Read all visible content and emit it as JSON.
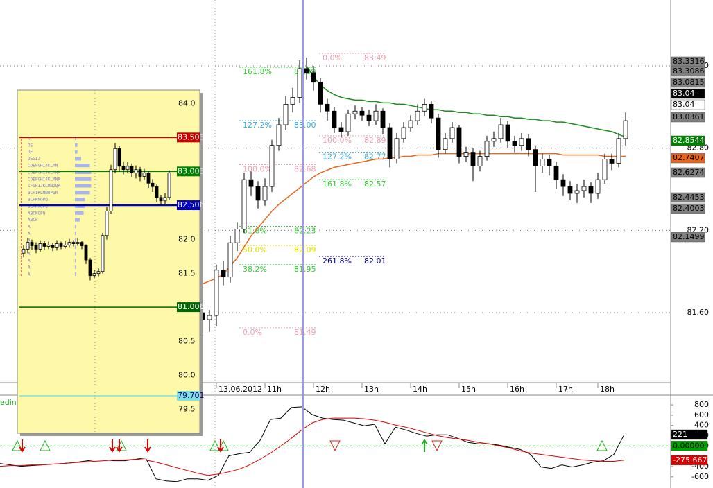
{
  "chart_data": [
    {
      "type": "candlestick",
      "categories": [
        null,
        null,
        "13.06.2012",
        null,
        null,
        null,
        null,
        null,
        null,
        "11h",
        null,
        null,
        null,
        null,
        null,
        null,
        "12h",
        null,
        null,
        null,
        null,
        null,
        null,
        "13h",
        null,
        null,
        null,
        null,
        null,
        null,
        "14h",
        null,
        null,
        null,
        null,
        null,
        null,
        "15h",
        null,
        null,
        null,
        null,
        null,
        null,
        "16h",
        null,
        null,
        null,
        null,
        null,
        null,
        "17h",
        null,
        null,
        null,
        null,
        null,
        "18h",
        null,
        null,
        null,
        null
      ],
      "open": [
        81.6,
        81.55,
        81.58,
        81.91,
        81.86,
        82.11,
        82.21,
        82.57,
        82.52,
        82.42,
        82.52,
        82.82,
        82.97,
        83.12,
        83.17,
        83.38,
        83.35,
        83.28,
        83.12,
        83.07,
        82.95,
        82.92,
        83.05,
        83.07,
        83.04,
        83.0,
        83.07,
        82.95,
        82.72,
        82.87,
        82.95,
        83.0,
        83.07,
        83.12,
        83.02,
        82.79,
        82.87,
        82.95,
        82.74,
        82.77,
        82.67,
        82.74,
        82.85,
        82.87,
        82.97,
        82.85,
        82.82,
        82.87,
        82.79,
        82.67,
        82.72,
        82.67,
        82.57,
        82.52,
        82.47,
        82.49,
        82.52,
        82.47,
        82.57,
        82.72,
        82.69,
        82.87
      ],
      "high": [
        81.63,
        81.62,
        81.95,
        81.98,
        82.16,
        82.26,
        82.62,
        82.63,
        82.56,
        82.58,
        82.86,
        83.02,
        83.18,
        83.24,
        83.44,
        83.46,
        83.4,
        83.31,
        83.16,
        83.1,
        82.99,
        83.08,
        83.11,
        83.1,
        83.08,
        83.12,
        83.09,
        82.98,
        82.91,
        82.99,
        83.04,
        83.12,
        83.16,
        83.14,
        83.05,
        82.91,
        82.99,
        82.97,
        82.81,
        82.8,
        82.78,
        82.89,
        82.92,
        83.02,
        83.0,
        82.89,
        82.91,
        82.9,
        82.82,
        82.76,
        82.75,
        82.7,
        82.61,
        82.56,
        82.54,
        82.57,
        82.55,
        82.62,
        82.76,
        82.76,
        82.91,
        83.06
      ],
      "low": [
        81.45,
        81.46,
        81.5,
        81.8,
        81.82,
        82.05,
        82.18,
        82.45,
        82.36,
        82.38,
        82.48,
        82.78,
        82.93,
        83.06,
        83.13,
        83.3,
        83.22,
        83.06,
        83.0,
        82.91,
        82.88,
        82.89,
        83.01,
        83.0,
        82.96,
        82.97,
        82.9,
        82.66,
        82.69,
        82.84,
        82.92,
        82.97,
        83.03,
        82.98,
        82.73,
        82.76,
        82.84,
        82.69,
        82.7,
        82.56,
        82.63,
        82.71,
        82.81,
        82.84,
        82.8,
        82.77,
        82.78,
        82.74,
        82.48,
        82.62,
        82.6,
        82.5,
        82.45,
        82.42,
        82.4,
        82.44,
        82.4,
        82.43,
        82.54,
        82.64,
        82.66,
        82.82
      ],
      "close": [
        81.55,
        81.58,
        81.91,
        81.86,
        82.11,
        82.21,
        82.57,
        82.52,
        82.42,
        82.52,
        82.82,
        82.97,
        83.12,
        83.17,
        83.38,
        83.35,
        83.28,
        83.12,
        83.07,
        82.95,
        82.92,
        83.05,
        83.07,
        83.04,
        83.0,
        83.07,
        82.95,
        82.72,
        82.87,
        82.95,
        83.0,
        83.07,
        83.12,
        83.02,
        82.79,
        82.87,
        82.95,
        82.74,
        82.77,
        82.67,
        82.74,
        82.85,
        82.87,
        82.97,
        82.85,
        82.82,
        82.87,
        82.79,
        82.67,
        82.72,
        82.67,
        82.57,
        82.52,
        82.47,
        82.49,
        82.52,
        82.47,
        82.57,
        82.72,
        82.69,
        82.87,
        83.0
      ],
      "series": [
        {
          "color": "#1a8c1a",
          "values": [
            null,
            null,
            null,
            null,
            null,
            null,
            null,
            null,
            null,
            null,
            null,
            null,
            null,
            null,
            null,
            83.4,
            83.32,
            83.26,
            83.22,
            83.19,
            83.17,
            83.16,
            83.15,
            83.15,
            83.14,
            83.14,
            83.13,
            83.13,
            83.12,
            83.12,
            83.11,
            83.1,
            83.09,
            83.08,
            83.08,
            83.07,
            83.07,
            83.06,
            83.06,
            83.05,
            83.05,
            83.04,
            83.04,
            83.03,
            83.03,
            83.02,
            83.02,
            83.01,
            83.01,
            83.0,
            83.0,
            82.99,
            82.99,
            82.98,
            82.97,
            82.96,
            82.95,
            82.94,
            82.93,
            82.92,
            82.9,
            82.88
          ]
        },
        {
          "color": "#e8661c",
          "values": [
            81.81,
            81.83,
            81.85,
            81.88,
            81.94,
            82.0,
            82.08,
            82.16,
            82.22,
            82.28,
            82.34,
            82.39,
            82.43,
            82.47,
            82.51,
            82.55,
            82.59,
            82.62,
            82.64,
            82.66,
            82.67,
            82.68,
            82.69,
            82.7,
            82.71,
            82.72,
            82.72,
            82.73,
            82.73,
            82.74,
            82.74,
            82.75,
            82.75,
            82.75,
            82.76,
            82.76,
            82.76,
            82.76,
            82.76,
            82.76,
            82.76,
            82.76,
            82.76,
            82.76,
            82.76,
            82.76,
            82.76,
            82.76,
            82.76,
            82.76,
            82.76,
            82.76,
            82.75,
            82.75,
            82.75,
            82.75,
            82.75,
            82.75,
            82.74,
            82.74,
            82.74,
            82.74
          ]
        }
      ],
      "ylim": [
        81.09,
        83.88
      ],
      "yticks": [
        {
          "value": 83.4,
          "label": "83.40"
        },
        {
          "value": 82.8,
          "label": "82.80"
        },
        {
          "value": 82.2,
          "label": "82.20"
        },
        {
          "value": 81.6,
          "label": "81.60"
        }
      ],
      "grid": true,
      "fib_left": [
        {
          "label": "161.8%",
          "value": 83.39,
          "color": "#33cc33"
        },
        {
          "label": "127.2%",
          "value": 83.0,
          "price_label": "83.00",
          "color": "#33aadd"
        },
        {
          "label": "100.0%",
          "value": 82.68,
          "color": "#f0a0b0"
        },
        {
          "label": "61.8%",
          "value": 82.23,
          "color": "#33cc33"
        },
        {
          "label": "50.0%",
          "value": 82.09,
          "color": "#e0e000"
        },
        {
          "label": "38.2%",
          "value": 81.95,
          "color": "#33cc33"
        },
        {
          "label": "0.0%",
          "value": 81.49,
          "color": "#f0a0b0"
        }
      ],
      "fib_right": [
        {
          "label": "0.0%",
          "value": 83.49,
          "color": "#f0a0b0"
        },
        {
          "label": "100.0%",
          "value": 82.89,
          "color": "#f0a0b0"
        },
        {
          "label": "127.2%",
          "value": 82.77,
          "color": "#33aadd"
        },
        {
          "label": "161.8%",
          "value": 82.57,
          "color": "#33cc33"
        },
        {
          "label": "261.8%",
          "value": 82.01,
          "color": "#000080"
        }
      ],
      "price_labels": [
        {
          "value": 83.3316,
          "color": "#808080",
          "text_color": "#000000"
        },
        {
          "value": 83.3086,
          "color": "#808080",
          "text_color": "#000000"
        },
        {
          "value": 83.0815,
          "color": "#808080",
          "text_color": "#000000"
        },
        {
          "value": 83.04,
          "color": "#000000",
          "text_color": "#ffffff"
        },
        {
          "value": 83.04,
          "color": "#ffffff",
          "text_color": "#000000"
        },
        {
          "value": 83.0361,
          "color": "#808080",
          "text_color": "#000000"
        },
        {
          "value": 82.8544,
          "color": "#008000",
          "text_color": "#ffffff"
        },
        {
          "value": 82.7407,
          "color": "#e8661c",
          "text_color": "#000000"
        },
        {
          "value": 82.6274,
          "color": "#808080",
          "text_color": "#000000"
        },
        {
          "value": 82.4453,
          "color": "#808080",
          "text_color": "#000000"
        },
        {
          "value": 82.4003,
          "color": "#808080",
          "text_color": "#000000"
        },
        {
          "value": 82.1499,
          "color": "#808080",
          "text_color": "#000000"
        }
      ]
    },
    {
      "type": "line",
      "title": "edina",
      "series": [
        {
          "color": "#000000",
          "values": [
            -340,
            -367,
            -394,
            -381,
            -367,
            -354,
            -340,
            -326,
            -299,
            -272,
            -272,
            -286,
            -286,
            -258,
            -231,
            -639,
            -680,
            -694,
            -639,
            -639,
            -666,
            -571,
            -190,
            -150,
            -122,
            109,
            517,
            544,
            748,
            762,
            612,
            544,
            517,
            503,
            449,
            394,
            422,
            41,
            367,
            313,
            245,
            190,
            218,
            218,
            150,
            68,
            41,
            41,
            14,
            -27,
            -68,
            -163,
            -408,
            -435,
            -367,
            -408,
            -367,
            -313,
            -286,
            -163,
            221
          ]
        },
        {
          "color": "#dd0000",
          "values": [
            -394,
            -381,
            -381,
            -367,
            -367,
            -354,
            -340,
            -326,
            -313,
            -299,
            -286,
            -272,
            -272,
            -258,
            -272,
            -313,
            -367,
            -422,
            -476,
            -530,
            -571,
            -544,
            -503,
            -449,
            -367,
            -258,
            -136,
            0,
            150,
            313,
            449,
            517,
            544,
            544,
            544,
            530,
            503,
            462,
            408,
            367,
            313,
            258,
            204,
            163,
            136,
            109,
            68,
            41,
            0,
            -41,
            -95,
            -136,
            -163,
            -190,
            -218,
            -245,
            -272,
            -286,
            -299,
            -299,
            -275.667
          ]
        }
      ],
      "ylim": [
        -818,
        963
      ],
      "yticks": [
        800,
        600,
        400,
        200,
        0,
        -400,
        -600
      ],
      "zero_line": {
        "value": 0,
        "label": "0.00000",
        "color": "#00a000"
      }
    },
    {
      "type": "candlestick",
      "open": [
        81.8,
        81.86,
        81.96,
        81.91,
        81.86,
        81.94,
        81.9,
        81.92,
        81.88,
        81.94,
        81.9,
        81.92,
        81.96,
        81.94,
        81.96,
        81.91,
        81.7,
        81.47,
        81.5,
        81.53,
        82.06,
        82.42,
        83.03,
        83.34,
        83.08,
        83.03,
        83.08,
        82.98,
        83.03,
        82.93,
        82.98,
        82.83,
        82.78,
        82.62,
        82.57,
        82.62
      ],
      "high": [
        81.92,
        82.02,
        82.0,
        81.96,
        81.99,
        81.98,
        81.97,
        81.95,
        81.99,
        81.97,
        81.98,
        82.01,
        81.99,
        82.02,
        81.98,
        81.93,
        81.73,
        81.55,
        81.58,
        82.1,
        82.48,
        83.1,
        83.42,
        83.38,
        83.15,
        83.14,
        83.12,
        83.09,
        83.07,
        83.04,
        83.01,
        82.89,
        82.81,
        82.66,
        82.68,
        83.02
      ],
      "low": [
        81.74,
        81.8,
        81.85,
        81.8,
        81.82,
        81.85,
        81.86,
        81.83,
        81.84,
        81.86,
        81.87,
        81.88,
        81.9,
        81.91,
        81.86,
        81.64,
        81.4,
        81.43,
        81.46,
        81.5,
        82.0,
        82.38,
        82.98,
        83.0,
        82.96,
        82.98,
        82.92,
        82.9,
        82.86,
        82.88,
        82.76,
        82.7,
        82.55,
        82.5,
        82.52,
        82.58
      ],
      "close": [
        81.86,
        81.96,
        81.91,
        81.86,
        81.94,
        81.9,
        81.92,
        81.88,
        81.94,
        81.9,
        81.92,
        81.96,
        81.94,
        81.96,
        81.91,
        81.7,
        81.47,
        81.5,
        81.53,
        82.06,
        82.42,
        83.03,
        83.34,
        83.08,
        83.03,
        83.08,
        82.98,
        83.03,
        82.93,
        82.98,
        82.83,
        82.78,
        82.62,
        82.57,
        82.62,
        82.98
      ],
      "ylim": [
        79.15,
        84.2
      ],
      "yticks": [
        {
          "value": 84,
          "label": "84.0"
        },
        {
          "value": 82,
          "label": "82.0"
        },
        81.5,
        80.5,
        {
          "value": 80,
          "label": "80.0"
        },
        79.5
      ],
      "levels": [
        {
          "value": 83.503,
          "color": "#cc0000",
          "text_color": "#ffffff"
        },
        {
          "value": 83.003,
          "color": "#008000",
          "text_color": "#ffffff"
        },
        {
          "value": 82.506,
          "color": "#0000cc",
          "text_color": "#ffffff"
        },
        {
          "value": 81.006,
          "color": "#006400",
          "text_color": "#ffffff"
        },
        {
          "value": 79.701,
          "color": "#80e0e0",
          "text_color": "#000080"
        }
      ],
      "profile": [
        "D",
        "DE",
        "DE",
        "DEGIJ",
        "CDEFGHIJKLMN",
        "CDEFGHIJKLMNR",
        "CDEFGHIJKLMNR",
        "CFGHIJKLMNOQR",
        "BCHIKLMNOPQR",
        "BCHKNOPQ",
        "BCHKNOPQ",
        "ABCNOPQ",
        "ABCP",
        "A",
        "A",
        "A",
        "A",
        "A",
        "A",
        "A",
        "A"
      ]
    }
  ]
}
